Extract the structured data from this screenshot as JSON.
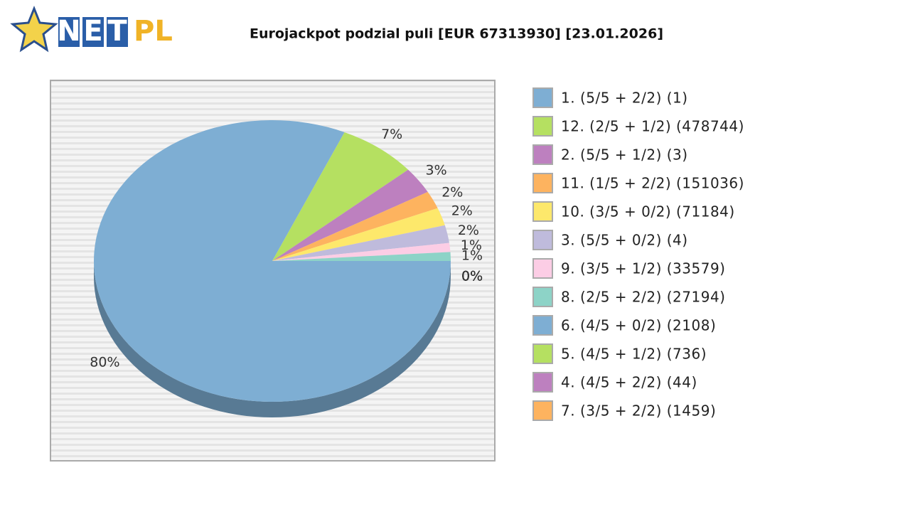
{
  "logo": {
    "letters": [
      "N",
      "E",
      "T"
    ],
    "suffix": "PL"
  },
  "chart_data": {
    "type": "pie",
    "title": "Eurojackpot podzial puli [EUR 67313930] [23.01.2026]",
    "categories": [
      "1. (5/5 + 2/2) (1)",
      "12. (2/5 + 1/2) (478744)",
      "2. (5/5 + 1/2) (3)",
      "11. (1/5 + 2/2) (151036)",
      "10. (3/5 + 0/2) (71184)",
      "3. (5/5 + 0/2) (4)",
      "9. (3/5 + 1/2) (33579)",
      "8. (2/5 + 2/2) (27194)",
      "6. (4/5 + 0/2) (2108)",
      "5. (4/5 + 1/2) (736)",
      "4. (4/5 + 2/2) (44)",
      "7. (3/5 + 2/2) (1459)"
    ],
    "values": [
      80,
      7,
      3,
      2,
      2,
      2,
      1,
      1,
      0,
      0,
      0,
      0
    ],
    "value_labels": [
      "80%",
      "7%",
      "3%",
      "2%",
      "2%",
      "2%",
      "1%",
      "1%",
      "0%",
      "0%",
      "0%",
      "0%"
    ],
    "colors": [
      "#7eaed3",
      "#b5e061",
      "#bd80bf",
      "#fdb35f",
      "#fde86b",
      "#bfbbdc",
      "#fccde5",
      "#8dd3c7",
      "#7eaed3",
      "#b5e061",
      "#bd80bf",
      "#fdb35f"
    ],
    "legend": "right"
  }
}
